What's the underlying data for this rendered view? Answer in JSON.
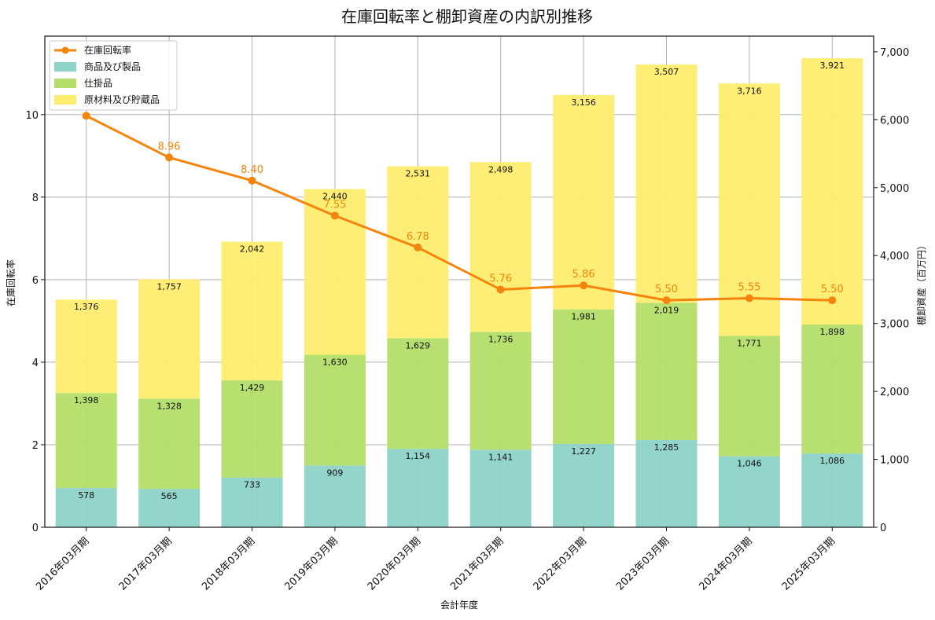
{
  "chart_data": {
    "type": "bar",
    "title": "在庫回転率と棚卸資産の内訳別推移",
    "xlabel": "会計年度",
    "ylabel_left": "在庫回転率",
    "ylabel_right": "棚卸資産（百万円）",
    "categories": [
      "2016年03月期",
      "2017年03月期",
      "2018年03月期",
      "2019年03月期",
      "2020年03月期",
      "2021年03月期",
      "2022年03月期",
      "2023年03月期",
      "2024年03月期",
      "2025年03月期"
    ],
    "stacked_series": [
      {
        "name": "商品及び製品",
        "color": "#8dd3c7",
        "values": [
          578,
          565,
          733,
          909,
          1154,
          1141,
          1227,
          1285,
          1046,
          1086
        ],
        "labels": [
          "578",
          "565",
          "733",
          "909",
          "1,154",
          "1,141",
          "1,227",
          "1,285",
          "1,046",
          "1,086"
        ]
      },
      {
        "name": "仕掛品",
        "color": "#b3de69",
        "values": [
          1398,
          1328,
          1429,
          1630,
          1629,
          1736,
          1981,
          2019,
          1771,
          1898
        ],
        "labels": [
          "1,398",
          "1,328",
          "1,429",
          "1,630",
          "1,629",
          "1,736",
          "1,981",
          "2,019",
          "1,771",
          "1,898"
        ]
      },
      {
        "name": "原材料及び貯蔵品",
        "color": "#ffed6f",
        "values": [
          1376,
          1757,
          2042,
          2440,
          2531,
          2498,
          3156,
          3507,
          3716,
          3921
        ],
        "labels": [
          "1,376",
          "1,757",
          "2,042",
          "2,440",
          "2,531",
          "2,498",
          "3,156",
          "3,507",
          "3,716",
          "3,921"
        ]
      }
    ],
    "line_series": {
      "name": "在庫回転率",
      "color": "#f5840c",
      "values": [
        9.97,
        8.96,
        8.4,
        7.55,
        6.78,
        5.76,
        5.86,
        5.5,
        5.55,
        5.5
      ],
      "labels": [
        "",
        "8.96",
        "8.40",
        "7.55",
        "6.78",
        "5.76",
        "5.86",
        "5.50",
        "5.55",
        "5.50"
      ]
    },
    "ylim_left": [
      0,
      11.9
    ],
    "yticks_left": [
      "0",
      "2",
      "4",
      "6",
      "8",
      "10"
    ],
    "ylim_right": [
      0,
      7230
    ],
    "yticks_right": [
      "0",
      "1,000",
      "2,000",
      "3,000",
      "4,000",
      "5,000",
      "6,000",
      "7,000"
    ],
    "grid": true,
    "legend": "top-left"
  }
}
